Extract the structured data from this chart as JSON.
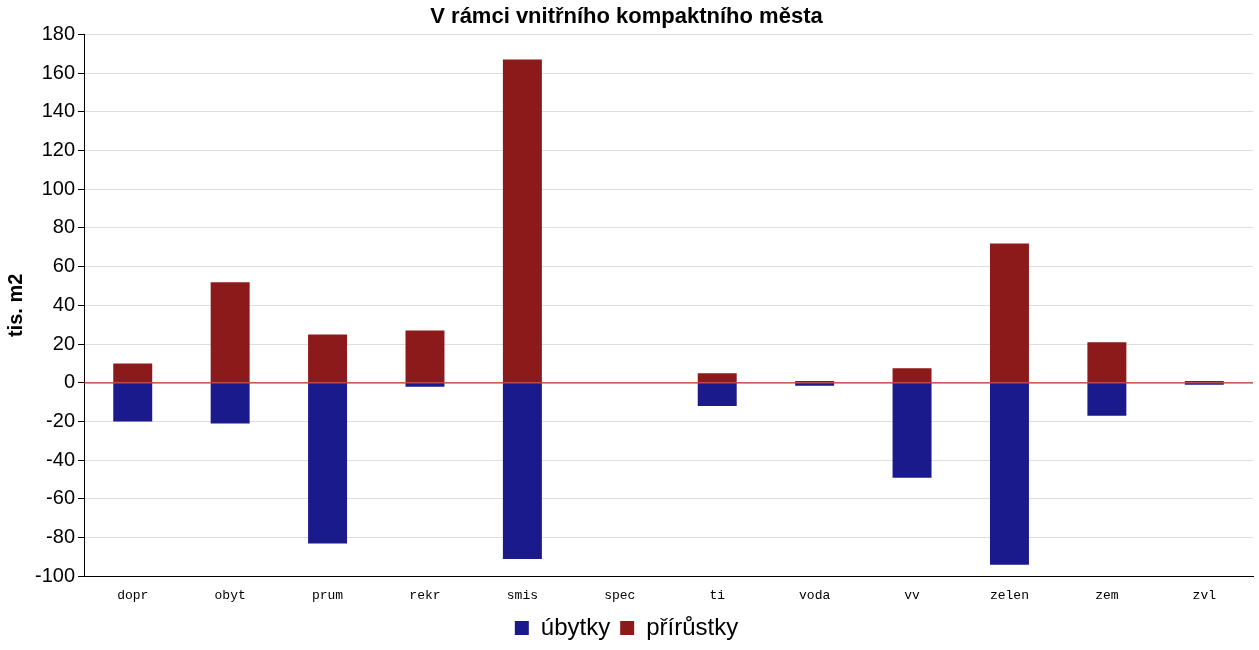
{
  "chart_data": {
    "type": "bar",
    "title": "V rámci vnitřního kompaktního města",
    "ylabel": "tis. m2",
    "categories": [
      "dopr",
      "obyt",
      "prum",
      "rekr",
      "smis",
      "spec",
      "ti",
      "voda",
      "vv",
      "zelen",
      "zem",
      "zvl"
    ],
    "series": [
      {
        "name": "úbytky",
        "color": "#1a1a8c",
        "values": [
          -20,
          -21,
          -83,
          -2,
          -91,
          0,
          -12,
          -1.5,
          -49,
          -94,
          -17,
          -1
        ]
      },
      {
        "name": "přírůstky",
        "color": "#8c1a1a",
        "values": [
          10,
          52,
          25,
          27,
          167,
          0,
          5,
          1,
          7.5,
          72,
          21,
          1
        ]
      }
    ],
    "stacked": true,
    "ylim": [
      -100,
      180
    ],
    "yticks": [
      -100,
      -80,
      -60,
      -40,
      -20,
      0,
      20,
      40,
      60,
      80,
      100,
      120,
      140,
      160,
      180
    ],
    "grid": "y",
    "legend": "bottom",
    "ref_lines": [
      {
        "axis": "y",
        "value": 0,
        "color": "#c03030"
      }
    ]
  }
}
